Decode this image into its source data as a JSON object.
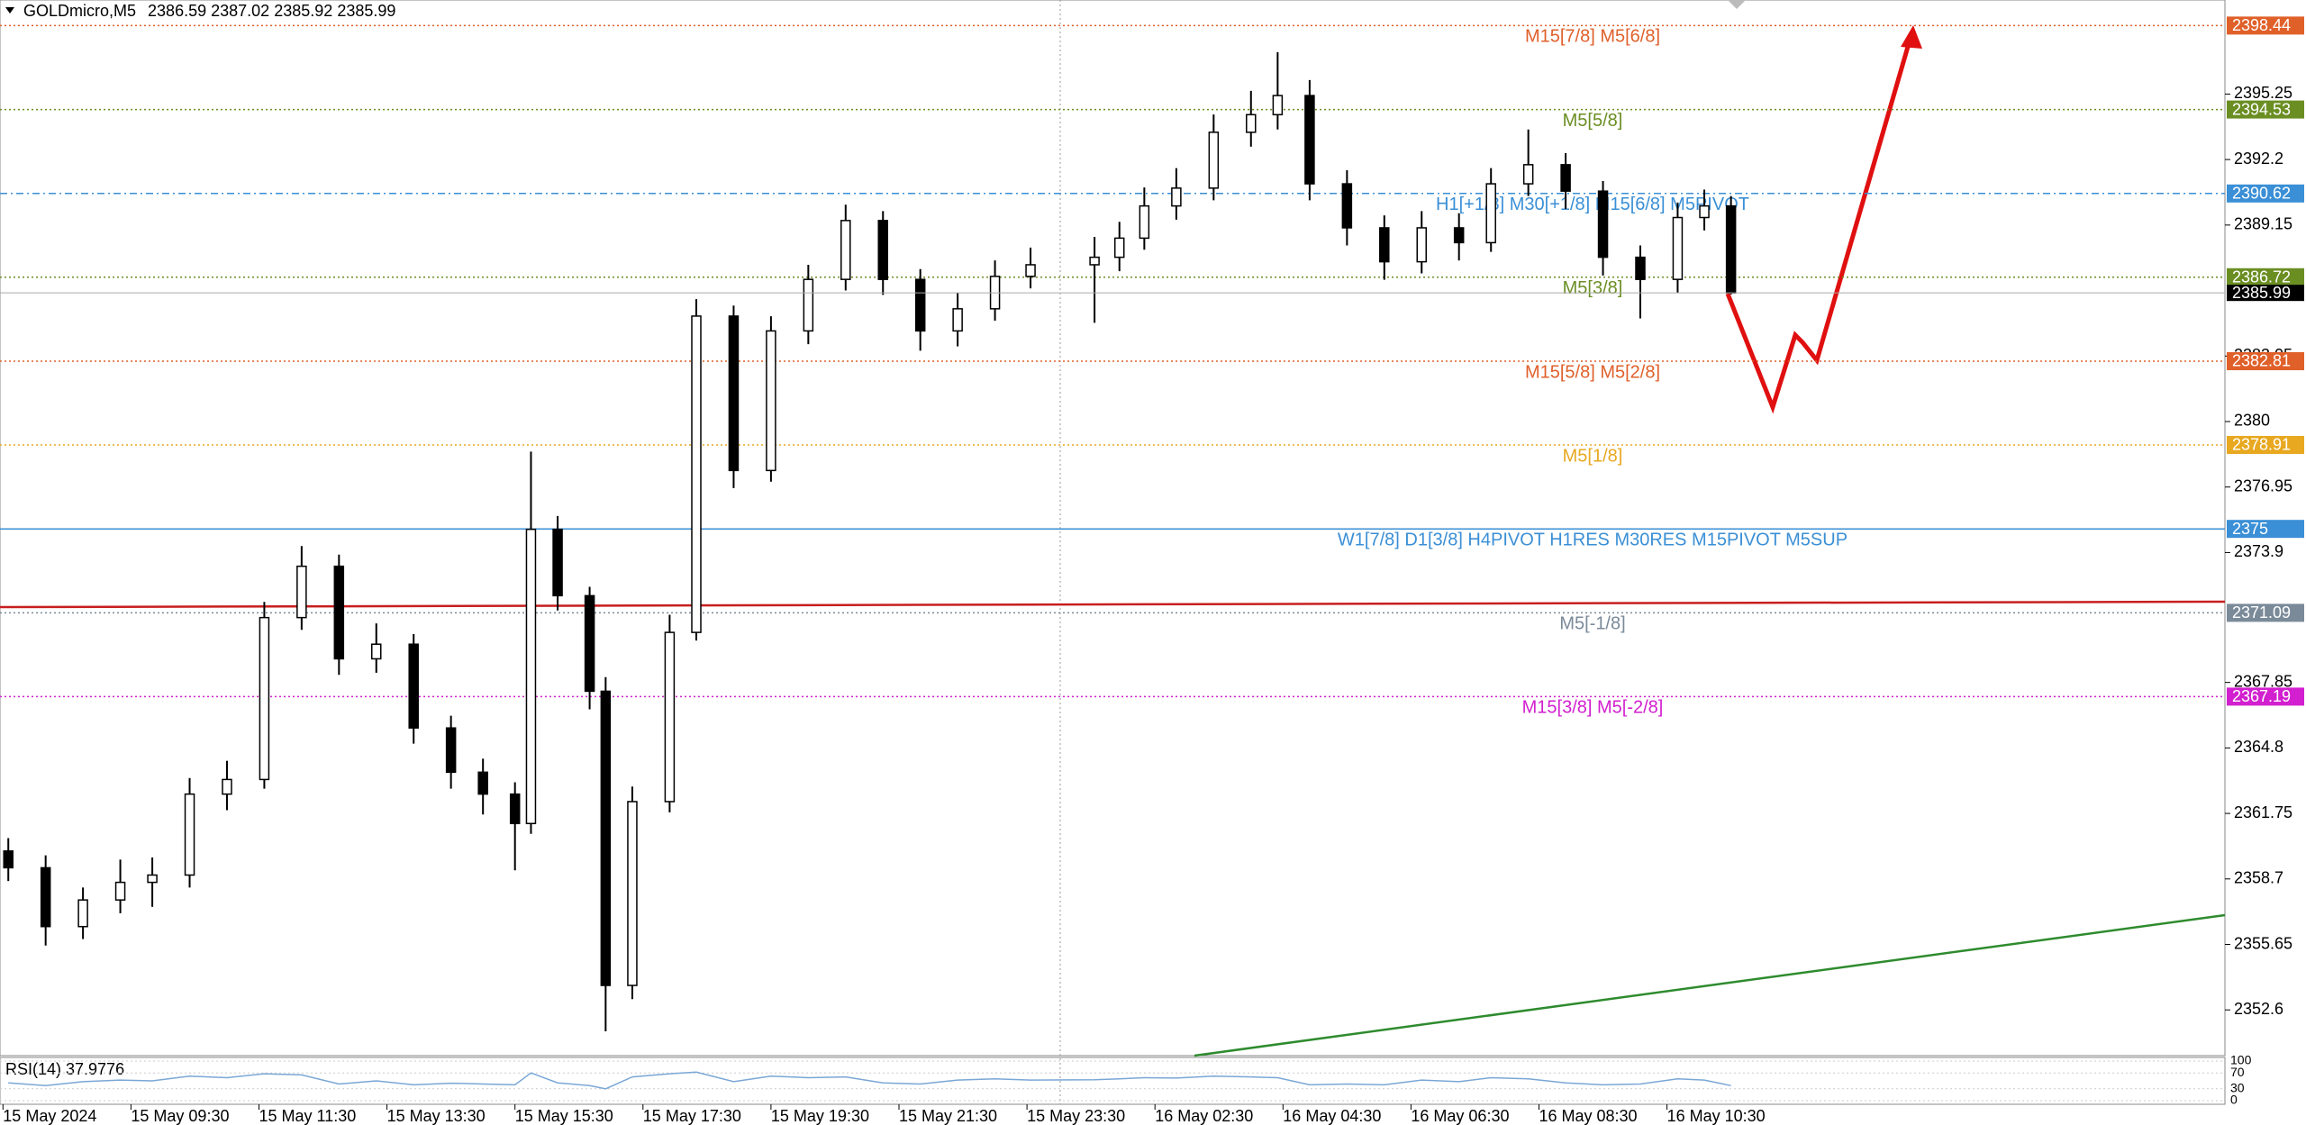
{
  "header": {
    "symbol": "GOLDmicro,M5",
    "ohlc": [
      "2386.59",
      "2387.02",
      "2385.92",
      "2385.99"
    ]
  },
  "chart_data": {
    "type": "candlestick",
    "x": [
      "15 May 07:35",
      "15 May 08:10",
      "15 May 08:45",
      "15 May 09:20",
      "15 May 09:50",
      "15 May 10:25",
      "15 May 11:00",
      "15 May 11:35",
      "15 May 12:10",
      "15 May 12:45",
      "15 May 13:20",
      "15 May 13:55",
      "15 May 14:30",
      "15 May 15:00",
      "15 May 15:30",
      "15 May 15:45",
      "15 May 16:10",
      "15 May 16:40",
      "15 May 16:55",
      "15 May 17:20",
      "15 May 17:55",
      "15 May 18:20",
      "15 May 18:55",
      "15 May 19:30",
      "15 May 20:05",
      "15 May 20:40",
      "15 May 21:15",
      "15 May 21:50",
      "15 May 22:25",
      "15 May 23:00",
      "15 May 23:35",
      "16 May 01:05",
      "16 May 01:40",
      "16 May 02:15",
      "16 May 02:50",
      "16 May 03:25",
      "16 May 04:00",
      "16 May 04:25",
      "16 May 04:55",
      "16 May 05:30",
      "16 May 06:05",
      "16 May 06:40",
      "16 May 07:15",
      "16 May 07:45",
      "16 May 08:20",
      "16 May 08:55",
      "16 May 09:30",
      "16 May 10:05",
      "16 May 10:40",
      "16 May 11:05",
      "16 May 11:30"
    ],
    "open": [
      2360.0,
      2359.22,
      2356.48,
      2357.72,
      2358.54,
      2358.88,
      2362.65,
      2363.33,
      2370.87,
      2373.26,
      2368.95,
      2369.63,
      2365.73,
      2363.67,
      2362.65,
      2361.28,
      2374.98,
      2371.89,
      2367.44,
      2353.74,
      2362.3,
      2370.18,
      2384.91,
      2377.72,
      2384.22,
      2386.62,
      2389.36,
      2386.62,
      2384.22,
      2385.25,
      2386.76,
      2387.3,
      2387.65,
      2388.54,
      2390.04,
      2390.87,
      2393.47,
      2394.29,
      2395.18,
      2391.07,
      2389.02,
      2387.44,
      2389.02,
      2388.33,
      2391.07,
      2391.96,
      2390.73,
      2387.65,
      2386.62,
      2389.5,
      2390.04
    ],
    "high": [
      2360.6,
      2359.8,
      2358.3,
      2359.6,
      2359.7,
      2363.4,
      2364.2,
      2371.6,
      2374.2,
      2373.8,
      2370.6,
      2370.1,
      2366.3,
      2364.3,
      2363.2,
      2378.6,
      2375.6,
      2372.3,
      2368.1,
      2363.0,
      2371.0,
      2385.7,
      2385.4,
      2384.9,
      2387.3,
      2390.1,
      2389.8,
      2387.1,
      2386.0,
      2387.5,
      2388.1,
      2388.6,
      2389.3,
      2390.9,
      2391.8,
      2394.3,
      2395.4,
      2397.2,
      2395.9,
      2391.7,
      2389.6,
      2389.8,
      2389.7,
      2391.8,
      2393.6,
      2392.5,
      2391.2,
      2388.2,
      2390.2,
      2390.8,
      2390.5
    ],
    "low": [
      2358.6,
      2355.6,
      2355.9,
      2357.1,
      2357.4,
      2358.3,
      2361.9,
      2362.9,
      2370.3,
      2368.2,
      2368.3,
      2365.0,
      2362.9,
      2361.7,
      2359.1,
      2360.8,
      2371.2,
      2366.6,
      2351.6,
      2353.1,
      2361.8,
      2369.8,
      2376.9,
      2377.2,
      2383.6,
      2386.1,
      2385.9,
      2383.3,
      2383.5,
      2384.7,
      2386.2,
      2384.6,
      2387.0,
      2388.0,
      2389.4,
      2390.3,
      2392.8,
      2393.6,
      2390.3,
      2388.2,
      2386.6,
      2386.9,
      2387.5,
      2387.9,
      2390.5,
      2389.9,
      2386.8,
      2384.8,
      2386.0,
      2388.9,
      2385.92
    ],
    "close": [
      2359.22,
      2356.48,
      2357.72,
      2358.54,
      2358.88,
      2362.65,
      2363.33,
      2370.87,
      2373.26,
      2368.95,
      2369.63,
      2365.73,
      2363.67,
      2362.65,
      2361.28,
      2374.98,
      2371.89,
      2367.44,
      2353.74,
      2362.3,
      2370.18,
      2384.91,
      2377.72,
      2384.22,
      2386.62,
      2389.36,
      2386.62,
      2384.22,
      2385.25,
      2386.76,
      2387.3,
      2387.65,
      2388.54,
      2390.04,
      2390.87,
      2393.47,
      2394.29,
      2395.18,
      2391.07,
      2389.02,
      2387.44,
      2389.02,
      2388.33,
      2391.07,
      2391.96,
      2390.73,
      2387.65,
      2386.62,
      2389.5,
      2390.04,
      2385.99
    ],
    "ylim": [
      2350.47,
      2399.63
    ],
    "yticks": [
      2395.25,
      2392.2,
      2389.15,
      2383.05,
      2380,
      2376.95,
      2373.9,
      2367.85,
      2364.8,
      2361.75,
      2358.7,
      2355.65,
      2352.6
    ],
    "xticks": [
      {
        "value": "15 May 07:30",
        "label": "15 May 2024"
      },
      "15 May 09:30",
      "15 May 11:30",
      "15 May 13:30",
      "15 May 15:30",
      "15 May 17:30",
      "15 May 19:30",
      "15 May 21:30",
      "15 May 23:30",
      "16 May 02:30",
      "16 May 04:30",
      "16 May 06:30",
      "16 May 08:30",
      "16 May 10:30"
    ],
    "levels": [
      {
        "price": 2398.44,
        "label": "M15[7/8] M5[6/8]",
        "color": "#e0602a",
        "style": "dotted"
      },
      {
        "price": 2394.53,
        "label": "M5[5/8]",
        "color": "#6b8e23",
        "style": "dotted"
      },
      {
        "price": 2390.62,
        "label": "H1[+1/8] M30[+1/8] M15[6/8] M5PIVOT",
        "color": "#3a8fd6",
        "style": "dashdot"
      },
      {
        "price": 2386.72,
        "label": "M5[3/8]",
        "color": "#6b8e23",
        "style": "dotted"
      },
      {
        "price": 2382.81,
        "label": "M15[5/8] M5[2/8]",
        "color": "#e0602a",
        "style": "dotted"
      },
      {
        "price": 2378.91,
        "label": "M5[1/8]",
        "color": "#e8a820",
        "style": "dotted"
      },
      {
        "price": 2375.0,
        "label": "W1[7/8] D1[3/8] H4PIVOT H1RES M30RES M15PIVOT M5SUP",
        "color": "#3a8fd6",
        "style": "solid"
      },
      {
        "price": 2371.09,
        "label": "M5[-1/8]",
        "color": "#7a8a99",
        "style": "dotted"
      },
      {
        "price": 2367.19,
        "label": "M15[3/8] M5[-2/8]",
        "color": "#d21fcf",
        "style": "dotted"
      }
    ],
    "current_price": 2385.99,
    "rsi": {
      "title": "RSI(14) 37.9776",
      "values": [
        45,
        38,
        48,
        52,
        50,
        62,
        58,
        68,
        65,
        42,
        50,
        40,
        44,
        42,
        40,
        70,
        45,
        38,
        30,
        60,
        68,
        72,
        48,
        62,
        58,
        60,
        45,
        42,
        52,
        55,
        52,
        53,
        55,
        58,
        57,
        62,
        60,
        58,
        40,
        42,
        40,
        52,
        48,
        58,
        55,
        45,
        40,
        42,
        55,
        52,
        37.9776
      ],
      "ylim": [
        0,
        100
      ],
      "yticks": [
        100,
        70,
        30,
        0
      ],
      "color": "#7aa7d6"
    }
  }
}
